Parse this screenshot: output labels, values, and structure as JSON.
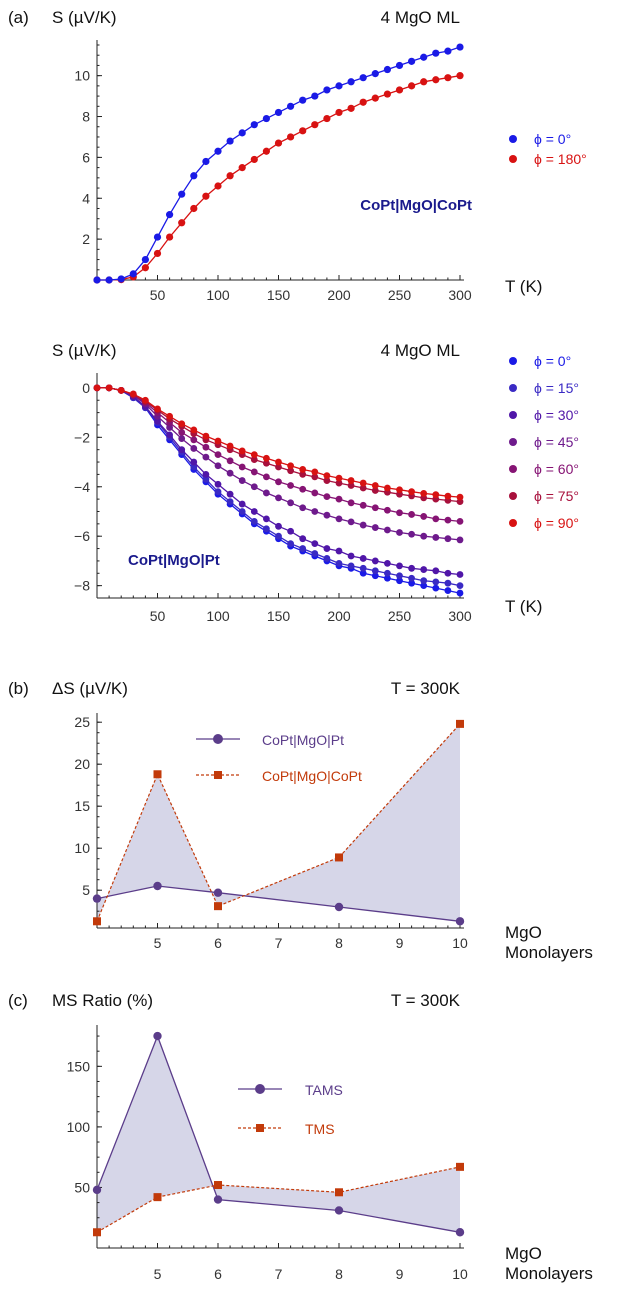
{
  "colors": {
    "blue": "#1a1ae6",
    "red": "#d81212",
    "navy": "#1a1a8c",
    "purple": "#5b3d8a",
    "orange": "#c23a0a",
    "fill": "#d6d6e8",
    "phi": [
      "#1a1ae6",
      "#3a2ac4",
      "#5016a8",
      "#6e1a8c",
      "#861474",
      "#a8103c",
      "#d81212"
    ]
  },
  "panels": {
    "a": {
      "tag": "(a)"
    },
    "b": {
      "tag": "(b)"
    },
    "c": {
      "tag": "(c)"
    }
  },
  "chart_data": [
    {
      "id": "a1",
      "type": "line",
      "ylabel": "S (µV/K)",
      "xlabel": "T (K)",
      "note": "4 MgO ML",
      "annotation": "CoPt|MgO|CoPt",
      "xlim": [
        0,
        300
      ],
      "ylim": [
        0,
        11.5
      ],
      "xticks": [
        50,
        100,
        150,
        200,
        250,
        300
      ],
      "yticks": [
        2,
        4,
        6,
        8,
        10
      ],
      "x": [
        0,
        10,
        20,
        30,
        40,
        50,
        60,
        70,
        80,
        90,
        100,
        110,
        120,
        130,
        140,
        150,
        160,
        170,
        180,
        190,
        200,
        210,
        220,
        230,
        240,
        250,
        260,
        270,
        280,
        290,
        300
      ],
      "series": [
        {
          "name": "ϕ = 0°",
          "values": [
            0.0,
            0.0,
            0.05,
            0.3,
            1.0,
            2.1,
            3.2,
            4.2,
            5.1,
            5.8,
            6.3,
            6.8,
            7.2,
            7.6,
            7.9,
            8.2,
            8.5,
            8.8,
            9.0,
            9.3,
            9.5,
            9.7,
            9.9,
            10.1,
            10.3,
            10.5,
            10.7,
            10.9,
            11.1,
            11.2,
            11.4
          ]
        },
        {
          "name": "ϕ = 180°",
          "values": [
            0.0,
            0.0,
            0.02,
            0.15,
            0.6,
            1.3,
            2.1,
            2.8,
            3.5,
            4.1,
            4.6,
            5.1,
            5.5,
            5.9,
            6.3,
            6.7,
            7.0,
            7.3,
            7.6,
            7.9,
            8.2,
            8.4,
            8.7,
            8.9,
            9.1,
            9.3,
            9.5,
            9.7,
            9.8,
            9.9,
            10.0
          ]
        }
      ]
    },
    {
      "id": "a2",
      "type": "line",
      "ylabel": "S (µV/K)",
      "xlabel": "T (K)",
      "note": "4 MgO ML",
      "annotation": "CoPt|MgO|Pt",
      "xlim": [
        0,
        300
      ],
      "ylim": [
        -8.5,
        0.4
      ],
      "xticks": [
        50,
        100,
        150,
        200,
        250,
        300
      ],
      "yticks": [
        0,
        -2,
        -4,
        -6,
        -8
      ],
      "x": [
        0,
        10,
        20,
        30,
        40,
        50,
        60,
        70,
        80,
        90,
        100,
        110,
        120,
        130,
        140,
        150,
        160,
        170,
        180,
        190,
        200,
        210,
        220,
        230,
        240,
        250,
        260,
        270,
        280,
        290,
        300
      ],
      "series": [
        {
          "name": "ϕ = 0°",
          "values": [
            0.0,
            0.0,
            -0.1,
            -0.4,
            -0.8,
            -1.5,
            -2.1,
            -2.7,
            -3.3,
            -3.8,
            -4.3,
            -4.7,
            -5.1,
            -5.5,
            -5.8,
            -6.1,
            -6.4,
            -6.6,
            -6.8,
            -7.0,
            -7.2,
            -7.3,
            -7.5,
            -7.6,
            -7.7,
            -7.8,
            -7.9,
            -8.0,
            -8.1,
            -8.2,
            -8.3
          ]
        },
        {
          "name": "ϕ = 15°",
          "values": [
            0.0,
            0.0,
            -0.1,
            -0.4,
            -0.8,
            -1.4,
            -2.0,
            -2.6,
            -3.2,
            -3.7,
            -4.2,
            -4.6,
            -5.0,
            -5.4,
            -5.7,
            -6.0,
            -6.3,
            -6.5,
            -6.7,
            -6.9,
            -7.1,
            -7.2,
            -7.3,
            -7.4,
            -7.5,
            -7.6,
            -7.7,
            -7.8,
            -7.85,
            -7.9,
            -8.0
          ]
        },
        {
          "name": "ϕ = 30°",
          "values": [
            0.0,
            0.0,
            -0.1,
            -0.35,
            -0.75,
            -1.35,
            -1.9,
            -2.5,
            -3.0,
            -3.5,
            -3.9,
            -4.3,
            -4.7,
            -5.0,
            -5.3,
            -5.6,
            -5.8,
            -6.1,
            -6.3,
            -6.5,
            -6.6,
            -6.8,
            -6.9,
            -7.0,
            -7.1,
            -7.2,
            -7.3,
            -7.35,
            -7.4,
            -7.5,
            -7.55
          ]
        },
        {
          "name": "ϕ = 45°",
          "values": [
            0.0,
            0.0,
            -0.1,
            -0.3,
            -0.65,
            -1.15,
            -1.6,
            -2.05,
            -2.45,
            -2.8,
            -3.15,
            -3.45,
            -3.75,
            -4.0,
            -4.25,
            -4.45,
            -4.65,
            -4.85,
            -5.0,
            -5.15,
            -5.3,
            -5.42,
            -5.55,
            -5.65,
            -5.75,
            -5.85,
            -5.92,
            -6.0,
            -6.05,
            -6.1,
            -6.15
          ]
        },
        {
          "name": "ϕ = 60°",
          "values": [
            0.0,
            0.0,
            -0.1,
            -0.3,
            -0.6,
            -1.0,
            -1.4,
            -1.8,
            -2.1,
            -2.4,
            -2.7,
            -2.95,
            -3.2,
            -3.4,
            -3.6,
            -3.8,
            -3.95,
            -4.1,
            -4.25,
            -4.4,
            -4.5,
            -4.65,
            -4.75,
            -4.85,
            -4.95,
            -5.05,
            -5.12,
            -5.2,
            -5.3,
            -5.35,
            -5.4
          ]
        },
        {
          "name": "ϕ = 75°",
          "values": [
            0.0,
            0.0,
            -0.1,
            -0.25,
            -0.55,
            -0.9,
            -1.25,
            -1.55,
            -1.85,
            -2.1,
            -2.3,
            -2.5,
            -2.7,
            -2.9,
            -3.05,
            -3.2,
            -3.35,
            -3.5,
            -3.6,
            -3.75,
            -3.85,
            -3.95,
            -4.05,
            -4.15,
            -4.22,
            -4.3,
            -4.37,
            -4.45,
            -4.5,
            -4.55,
            -4.6
          ]
        },
        {
          "name": "ϕ = 90°",
          "values": [
            0.0,
            0.0,
            -0.1,
            -0.25,
            -0.5,
            -0.85,
            -1.15,
            -1.45,
            -1.7,
            -1.95,
            -2.15,
            -2.35,
            -2.55,
            -2.7,
            -2.85,
            -3.0,
            -3.15,
            -3.3,
            -3.4,
            -3.55,
            -3.65,
            -3.75,
            -3.85,
            -3.95,
            -4.05,
            -4.12,
            -4.2,
            -4.27,
            -4.32,
            -4.38,
            -4.42
          ]
        }
      ]
    },
    {
      "id": "b",
      "type": "line",
      "ylabel": "ΔS (µV/K)",
      "xlabel": [
        "MgO",
        "Monolayers"
      ],
      "note": "T = 300K",
      "xlim": [
        4,
        10
      ],
      "ylim": [
        0.5,
        25.5
      ],
      "xticks": [
        5,
        6,
        7,
        8,
        9,
        10
      ],
      "yticks": [
        5,
        10,
        15,
        20,
        25
      ],
      "x": [
        4,
        5,
        6,
        8,
        10
      ],
      "series": [
        {
          "name": "CoPt|MgO|Pt",
          "values": [
            4.0,
            5.5,
            4.7,
            3.0,
            1.3
          ]
        },
        {
          "name": "CoPt|MgO|CoPt",
          "values": [
            1.3,
            18.8,
            3.1,
            8.9,
            24.8
          ]
        }
      ]
    },
    {
      "id": "c",
      "type": "line",
      "ylabel": "MS Ratio (%)",
      "xlabel": [
        "MgO",
        "Monolayers"
      ],
      "note": "T = 300K",
      "xlim": [
        4,
        10
      ],
      "ylim": [
        0,
        180
      ],
      "xticks": [
        5,
        6,
        7,
        8,
        9,
        10
      ],
      "yticks": [
        50,
        100,
        150
      ],
      "x": [
        4,
        5,
        6,
        8,
        10
      ],
      "series": [
        {
          "name": "TAMS",
          "values": [
            48,
            175,
            40,
            31,
            13
          ]
        },
        {
          "name": "TMS",
          "values": [
            13,
            42,
            52,
            46,
            67
          ]
        }
      ]
    }
  ]
}
